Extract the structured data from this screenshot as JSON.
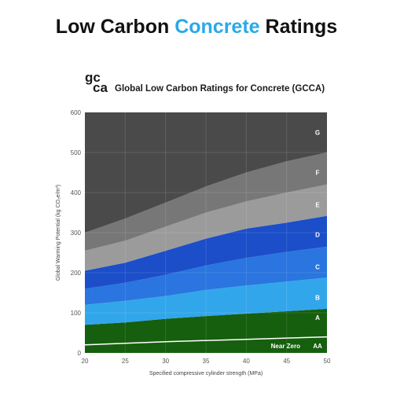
{
  "page": {
    "title_part1": "Low Carbon ",
    "title_highlight": "Concrete",
    "title_part2": " Ratings",
    "accent": "#2aa9e8"
  },
  "logo": {
    "line1": "gc",
    "line2": "ca"
  },
  "chart_data": {
    "type": "area",
    "title": "Global Low Carbon Ratings for Concrete (GCCA)",
    "xlabel": "Specified compressive cylinder strength (MPa)",
    "ylabel": "Global Warming Potential (kg CO₂e/m³)",
    "xlim": [
      20,
      50
    ],
    "ylim": [
      0,
      600
    ],
    "x_ticks": [
      20,
      25,
      30,
      35,
      40,
      45,
      50
    ],
    "y_ticks": [
      0,
      100,
      200,
      300,
      400,
      500,
      600
    ],
    "grid": true,
    "x": [
      20,
      25,
      30,
      35,
      40,
      45,
      50
    ],
    "boundaries": [
      {
        "name": "Near Zero",
        "values": [
          20,
          24,
          28,
          31,
          34,
          37,
          40
        ]
      },
      {
        "name": "AA",
        "values": [
          70,
          76,
          85,
          92,
          98,
          104,
          110
        ]
      },
      {
        "name": "A",
        "values": [
          120,
          130,
          142,
          157,
          168,
          178,
          188
        ]
      },
      {
        "name": "B",
        "values": [
          160,
          175,
          195,
          218,
          237,
          252,
          265
        ]
      },
      {
        "name": "C",
        "values": [
          205,
          225,
          255,
          285,
          310,
          325,
          342
        ]
      },
      {
        "name": "D",
        "values": [
          255,
          280,
          315,
          350,
          378,
          400,
          420
        ]
      },
      {
        "name": "E",
        "values": [
          300,
          335,
          375,
          415,
          450,
          478,
          500
        ]
      },
      {
        "name": "F",
        "values": [
          600,
          600,
          600,
          600,
          600,
          600,
          600
        ]
      }
    ],
    "bands": [
      {
        "name": "AA",
        "color": "#2f6a14",
        "label_y": 18
      },
      {
        "name": "A",
        "color": "#165f0e",
        "label_y": 88
      },
      {
        "name": "B",
        "color": "#32a6ea",
        "label_y": 138
      },
      {
        "name": "C",
        "color": "#2a75df",
        "label_y": 215
      },
      {
        "name": "D",
        "color": "#1b4ec8",
        "label_y": 295
      },
      {
        "name": "E",
        "color": "#9b9b9b",
        "label_y": 370
      },
      {
        "name": "F",
        "color": "#777777",
        "label_y": 450
      },
      {
        "name": "G",
        "color": "#4a4a4a",
        "label_y": 550
      }
    ],
    "near_zero_label": "Near Zero",
    "line_color": "#ffffff"
  }
}
